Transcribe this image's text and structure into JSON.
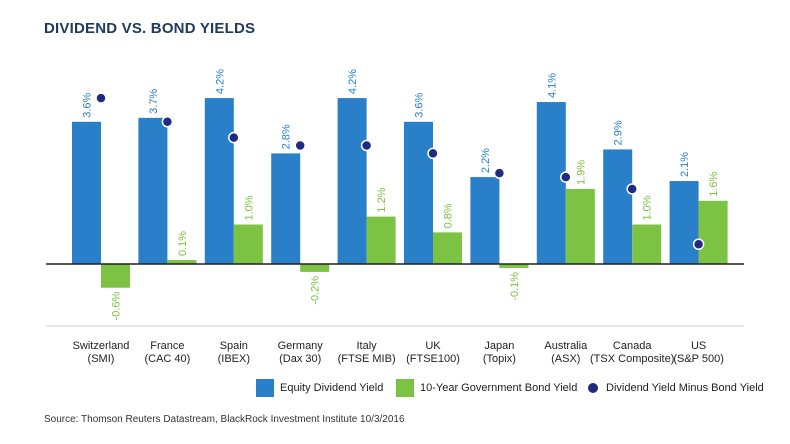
{
  "title": "DIVIDEND VS. BOND YIELDS",
  "source": "Source: Thomson Reuters Datastream, BlackRock Investment Institute 10/3/2016",
  "colors": {
    "equity": "#2980c8",
    "bond": "#7cc243",
    "diff": "#1f2a80",
    "axis": "#222222"
  },
  "legend": [
    {
      "label": "Equity Dividend Yield",
      "icon": "square"
    },
    {
      "label": "10-Year Government Bond Yield",
      "icon": "square"
    },
    {
      "label": "Dividend Yield Minus Bond Yield",
      "icon": "dot"
    }
  ],
  "chart_data": {
    "type": "bar",
    "categories": [
      [
        "Switzerland",
        "(SMI)"
      ],
      [
        "France",
        "(CAC 40)"
      ],
      [
        "Spain",
        "(IBEX)"
      ],
      [
        "Germany",
        "(Dax 30)"
      ],
      [
        "Italy",
        "(FTSE MIB)"
      ],
      [
        "UK",
        "(FTSE100)"
      ],
      [
        "Japan",
        "(Topix)"
      ],
      [
        "Australia",
        "(ASX)"
      ],
      [
        "Canada",
        "(TSX Composite)"
      ],
      [
        "US",
        "(S&P 500)"
      ]
    ],
    "series": [
      {
        "name": "Equity Dividend Yield",
        "type": "bar",
        "values": [
          3.6,
          3.7,
          4.2,
          2.8,
          4.2,
          3.6,
          2.2,
          4.1,
          2.9,
          2.1
        ],
        "labels": [
          "3.6%",
          "3.7%",
          "4.2%",
          "2.8%",
          "4.2%",
          "3.6%",
          "2.2%",
          "4.1%",
          "2.9%",
          "2.1%"
        ]
      },
      {
        "name": "10-Year Government Bond Yield",
        "type": "bar",
        "values": [
          -0.6,
          0.1,
          1.0,
          -0.2,
          1.2,
          0.8,
          -0.1,
          1.9,
          1.0,
          1.6
        ],
        "labels": [
          "-0.6%",
          "0.1%",
          "1.0%",
          "-0.2%",
          "1.2%",
          "0.8%",
          "-0.1%",
          "1.9%",
          "1.0%",
          "1.6%"
        ]
      },
      {
        "name": "Dividend Yield Minus Bond Yield",
        "type": "scatter",
        "values": [
          4.2,
          3.6,
          3.2,
          3.0,
          3.0,
          2.8,
          2.3,
          2.2,
          1.9,
          0.5
        ]
      }
    ],
    "ylim": [
      -1.6,
      4.8
    ],
    "grid": false,
    "legend_position": "bottom"
  }
}
